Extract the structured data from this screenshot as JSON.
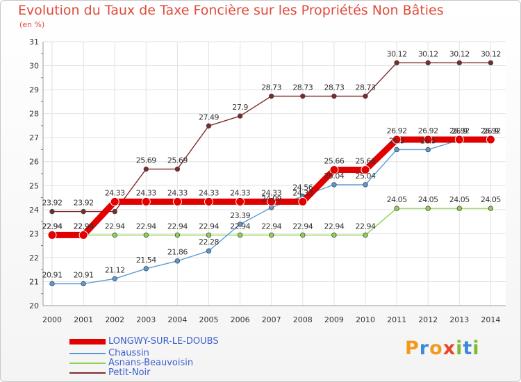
{
  "title": "Evolution du Taux de Taxe Foncière sur les Propriétés Non Bâties",
  "unit": "(en %)",
  "logo": {
    "letters": [
      "P",
      "r",
      "o",
      "x",
      "i",
      "t",
      "i"
    ],
    "colors": [
      "#f39a1d",
      "#3b8ad9",
      "#f39a1d",
      "#e8452c",
      "#7dbb2f",
      "#3b8ad9",
      "#7dbb2f"
    ]
  },
  "chart_data": {
    "type": "line",
    "title": "Evolution du Taux de Taxe Foncière sur les Propriétés Non Bâties",
    "ylabel": "(en %)",
    "xlabel": "",
    "x": [
      "2000",
      "2001",
      "2002",
      "2003",
      "2004",
      "2005",
      "2006",
      "2007",
      "2008",
      "2009",
      "2010",
      "2011",
      "2012",
      "2013",
      "2014"
    ],
    "ylim": [
      20,
      31
    ],
    "yticks": [
      "20",
      "21",
      "22",
      "23",
      "24",
      "25",
      "26",
      "27",
      "28",
      "29",
      "30",
      "31"
    ],
    "grid": true,
    "legend_position": "bottom-left",
    "series": [
      {
        "name": "LONGWY-SUR-LE-DOUBS",
        "color": "#e00000",
        "width": "heavy",
        "values": [
          22.94,
          22.94,
          24.33,
          24.33,
          24.33,
          24.33,
          24.33,
          24.33,
          24.33,
          25.66,
          25.66,
          26.92,
          26.92,
          26.92,
          26.92
        ],
        "labels": [
          "22.94",
          "22.94",
          "24.33",
          "24.33",
          "24.33",
          "24.33",
          "24.33",
          "24.33",
          "24.33",
          "25.66",
          "25.66",
          "26.92",
          "26.92",
          "26.92",
          "26.92"
        ]
      },
      {
        "name": "Chaussin",
        "color": "#5b9bd5",
        "width": "thin",
        "values": [
          20.91,
          20.91,
          21.12,
          21.54,
          21.86,
          22.28,
          23.39,
          24.09,
          24.56,
          25.04,
          25.04,
          26.5,
          26.5,
          26.9,
          26.9
        ],
        "labels": [
          "20.91",
          "20.91",
          "21.12",
          "21.54",
          "21.86",
          "22.28",
          "23.39",
          "24.09",
          "24.56",
          "25.04",
          "25.04",
          "26.5",
          "26.5",
          "26.9",
          "26.9"
        ]
      },
      {
        "name": "Asnans-Beauvoisin",
        "color": "#92d050",
        "width": "thin",
        "values": [
          22.94,
          22.94,
          22.94,
          22.94,
          22.94,
          22.94,
          22.94,
          22.94,
          22.94,
          22.94,
          22.94,
          24.05,
          24.05,
          24.05,
          24.05
        ],
        "labels": [
          "22.94",
          "22.94",
          "22.94",
          "22.94",
          "22.94",
          "22.94",
          "22.94",
          "22.94",
          "22.94",
          "22.94",
          "22.94",
          "24.05",
          "24.05",
          "24.05",
          "24.05"
        ]
      },
      {
        "name": "Petit-Noir",
        "color": "#7b2b2b",
        "width": "thin",
        "values": [
          23.92,
          23.92,
          23.92,
          25.69,
          25.69,
          27.49,
          27.9,
          28.73,
          28.73,
          28.73,
          28.73,
          30.12,
          30.12,
          30.12,
          30.12
        ],
        "labels": [
          "23.92",
          "23.92",
          "",
          "25.69",
          "25.69",
          "27.49",
          "27.9",
          "28.73",
          "28.73",
          "28.73",
          "28.73",
          "30.12",
          "30.12",
          "30.12",
          "30.12"
        ]
      }
    ]
  }
}
